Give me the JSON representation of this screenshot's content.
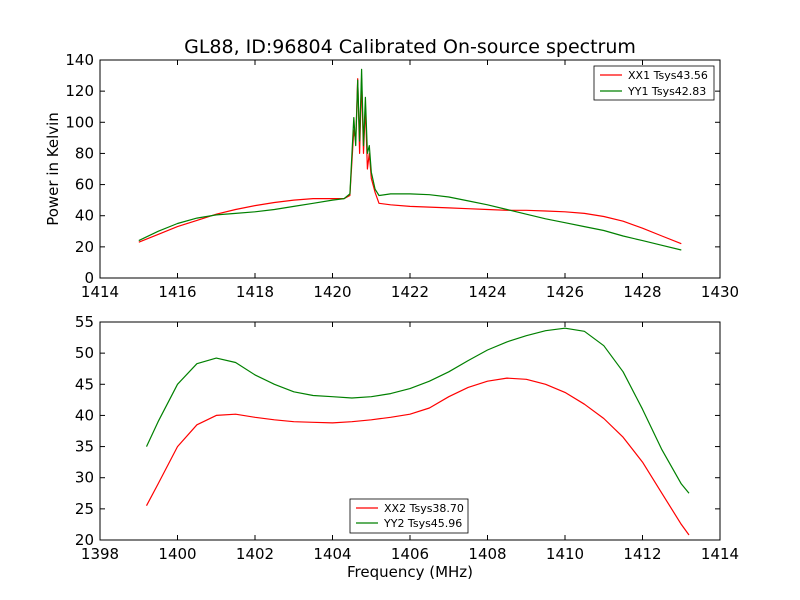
{
  "chart_data": [
    {
      "type": "line",
      "title": "GL88, ID:96804 Calibrated On-source spectrum",
      "xlabel": "",
      "ylabel": "Power in Kelvin",
      "xlim": [
        1414,
        1430
      ],
      "ylim": [
        0,
        140
      ],
      "xticks": [
        "1414",
        "1416",
        "1418",
        "1420",
        "1422",
        "1424",
        "1426",
        "1428",
        "1430"
      ],
      "yticks": [
        "0",
        "20",
        "40",
        "60",
        "80",
        "100",
        "120",
        "140"
      ],
      "grid": false,
      "legend_position": "top-right",
      "series": [
        {
          "name": "XX1 Tsys43.56",
          "color": "#ff0000",
          "x": [
            1415.0,
            1415.5,
            1416.0,
            1416.5,
            1417.0,
            1417.5,
            1418.0,
            1418.5,
            1419.0,
            1419.5,
            1420.0,
            1420.3,
            1420.45,
            1420.55,
            1420.6,
            1420.65,
            1420.7,
            1420.75,
            1420.8,
            1420.85,
            1420.9,
            1420.95,
            1421.0,
            1421.1,
            1421.2,
            1421.5,
            1422.0,
            1422.5,
            1423.0,
            1423.5,
            1424.0,
            1424.5,
            1425.0,
            1425.5,
            1426.0,
            1426.5,
            1427.0,
            1427.5,
            1428.0,
            1428.5,
            1429.0
          ],
          "values": [
            23,
            28,
            33,
            37,
            41,
            44,
            46.5,
            48.5,
            50,
            51,
            51,
            51,
            53,
            95,
            88,
            128,
            80,
            128,
            80,
            110,
            70,
            80,
            64,
            55,
            48,
            47,
            46,
            45.5,
            45,
            44.5,
            44,
            43.5,
            43.5,
            43,
            42.5,
            41.5,
            39.5,
            36.5,
            32,
            27,
            22
          ]
        },
        {
          "name": "YY1 Tsys42.83",
          "color": "#008000",
          "x": [
            1415.0,
            1415.5,
            1416.0,
            1416.5,
            1417.0,
            1417.5,
            1418.0,
            1418.5,
            1419.0,
            1419.5,
            1420.0,
            1420.3,
            1420.45,
            1420.55,
            1420.6,
            1420.65,
            1420.7,
            1420.75,
            1420.8,
            1420.85,
            1420.9,
            1420.95,
            1421.0,
            1421.1,
            1421.2,
            1421.5,
            1422.0,
            1422.5,
            1423.0,
            1423.5,
            1424.0,
            1424.5,
            1425.0,
            1425.5,
            1426.0,
            1426.5,
            1427.0,
            1427.5,
            1428.0,
            1428.5,
            1429.0
          ],
          "values": [
            24,
            30,
            35,
            38.5,
            40.5,
            41.5,
            42.5,
            44,
            46,
            48,
            50,
            51,
            54,
            103,
            85,
            127,
            88,
            134,
            85,
            116,
            80,
            85,
            68,
            57,
            53,
            54,
            54,
            53.5,
            52,
            49.5,
            47,
            44,
            41,
            38,
            35.5,
            33,
            30.5,
            27,
            24,
            21,
            18
          ]
        }
      ]
    },
    {
      "type": "line",
      "title": "",
      "xlabel": "Frequency (MHz)",
      "ylabel": "",
      "xlim": [
        1398,
        1414
      ],
      "ylim": [
        20,
        55
      ],
      "xticks": [
        "1398",
        "1400",
        "1402",
        "1404",
        "1406",
        "1408",
        "1410",
        "1412",
        "1414"
      ],
      "yticks": [
        "20",
        "25",
        "30",
        "35",
        "40",
        "45",
        "50",
        "55"
      ],
      "grid": false,
      "legend_position": "bottom-center",
      "series": [
        {
          "name": "XX2 Tsys38.70",
          "color": "#ff0000",
          "x": [
            1399.2,
            1399.5,
            1400.0,
            1400.5,
            1401.0,
            1401.5,
            1402.0,
            1402.5,
            1403.0,
            1403.5,
            1404.0,
            1404.5,
            1405.0,
            1405.5,
            1406.0,
            1406.5,
            1407.0,
            1407.5,
            1408.0,
            1408.5,
            1409.0,
            1409.5,
            1410.0,
            1410.5,
            1411.0,
            1411.5,
            1412.0,
            1412.5,
            1413.0,
            1413.2
          ],
          "values": [
            25.5,
            29,
            35,
            38.5,
            40,
            40.2,
            39.7,
            39.3,
            39.0,
            38.9,
            38.8,
            39.0,
            39.3,
            39.7,
            40.2,
            41.2,
            43.0,
            44.5,
            45.5,
            46.0,
            45.8,
            45.0,
            43.7,
            41.8,
            39.5,
            36.5,
            32.5,
            27.5,
            22.5,
            20.8
          ]
        },
        {
          "name": "YY2 Tsys45.96",
          "color": "#008000",
          "x": [
            1399.2,
            1399.5,
            1400.0,
            1400.5,
            1401.0,
            1401.5,
            1402.0,
            1402.5,
            1403.0,
            1403.5,
            1404.0,
            1404.5,
            1405.0,
            1405.5,
            1406.0,
            1406.5,
            1407.0,
            1407.5,
            1408.0,
            1408.5,
            1409.0,
            1409.5,
            1410.0,
            1410.5,
            1411.0,
            1411.5,
            1412.0,
            1412.5,
            1413.0,
            1413.2
          ],
          "values": [
            35,
            39,
            45,
            48.3,
            49.2,
            48.5,
            46.5,
            45.0,
            43.8,
            43.2,
            43.0,
            42.8,
            43.0,
            43.5,
            44.3,
            45.5,
            47.0,
            48.8,
            50.5,
            51.8,
            52.8,
            53.6,
            54.0,
            53.5,
            51.2,
            47.0,
            41.0,
            34.5,
            29.0,
            27.5
          ]
        }
      ]
    }
  ]
}
